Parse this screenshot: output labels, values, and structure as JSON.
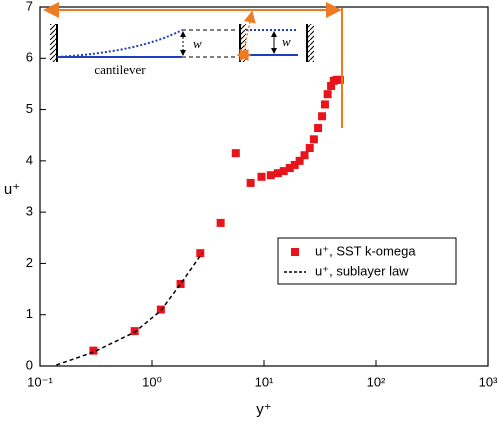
{
  "chart_data": {
    "type": "scatter",
    "xlabel": "y⁺",
    "ylabel": "u⁺",
    "xscale": "log",
    "xlim": [
      0.1,
      1000
    ],
    "xticks": [
      {
        "value": 0.1,
        "label": "10⁻¹"
      },
      {
        "value": 1,
        "label": "10⁰"
      },
      {
        "value": 10,
        "label": "10¹"
      },
      {
        "value": 100,
        "label": "10²"
      },
      {
        "value": 1000,
        "label": "10³"
      }
    ],
    "ylim": [
      0,
      7
    ],
    "yticks": [
      0,
      1,
      2,
      3,
      4,
      5,
      6,
      7
    ],
    "legend": "right",
    "series": [
      {
        "name": "u⁺, SST k-omega",
        "type": "scatter",
        "color": "#e8141c",
        "x": [
          0.3,
          0.7,
          1.2,
          1.8,
          2.7,
          4.1,
          5.6,
          7.6,
          9.5,
          11.5,
          13.3,
          15,
          17,
          18.8,
          20.8,
          23,
          25.6,
          27.9,
          30.4,
          33,
          35,
          37,
          39.7,
          42,
          44.5,
          47.6
        ],
        "values": [
          0.3,
          0.68,
          1.1,
          1.6,
          2.2,
          2.79,
          4.15,
          3.57,
          3.69,
          3.72,
          3.76,
          3.8,
          3.86,
          3.92,
          4.0,
          4.11,
          4.25,
          4.42,
          4.64,
          4.87,
          5.1,
          5.3,
          5.46,
          5.56,
          5.58,
          5.58
        ]
      },
      {
        "name": "u⁺, sublayer law",
        "type": "line",
        "color": "#000000",
        "x": [
          0.14,
          0.3,
          0.7,
          1.2,
          1.8,
          2.8
        ],
        "values": [
          0.02,
          0.27,
          0.66,
          1.08,
          1.6,
          2.2
        ]
      }
    ]
  },
  "inset": {
    "label": "cantilever",
    "w_left": "w",
    "w_right": "w"
  }
}
